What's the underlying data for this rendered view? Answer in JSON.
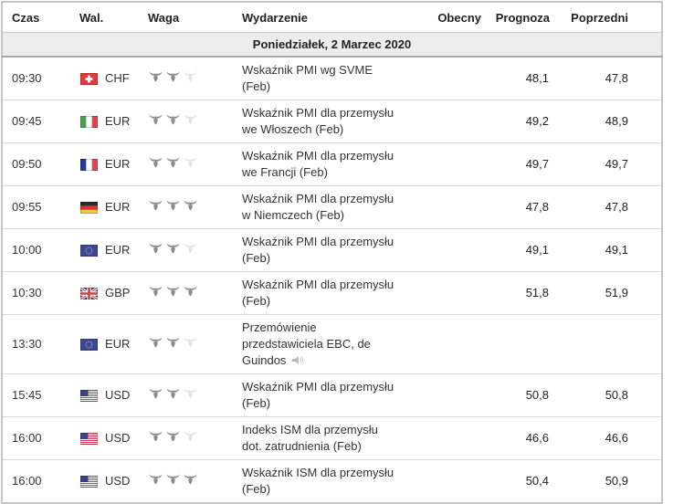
{
  "colors": {
    "up": "#0ba50b",
    "down": "#e51717",
    "neutral": "#222222",
    "importance_active": "#8b8b8b",
    "importance_inactive": "#e4e4e4",
    "date_row_bg": "#ededed"
  },
  "icons": {
    "importance": "bull-icon",
    "speech": "speaker-icon"
  },
  "table": {
    "columns": [
      {
        "key": "time",
        "label": "Czas"
      },
      {
        "key": "currency",
        "label": "Wal."
      },
      {
        "key": "importance",
        "label": "Waga"
      },
      {
        "key": "event",
        "label": "Wydarzenie"
      },
      {
        "key": "actual",
        "label": "Obecny"
      },
      {
        "key": "forecast",
        "label": "Prognoza"
      },
      {
        "key": "previous",
        "label": "Poprzedni"
      }
    ],
    "date_header": "Poniedziałek, 2 Marzec 2020",
    "rows": [
      {
        "time": "09:30",
        "currency": "CHF",
        "flag": "switzerland",
        "importance": 2,
        "importance_max": 3,
        "event": "Wskaźnik PMI wg SVME (Feb)",
        "has_speech_icon": false,
        "actual": "",
        "forecast": "48,1",
        "previous": "47,8",
        "previous_trend": "down"
      },
      {
        "time": "09:45",
        "currency": "EUR",
        "flag": "italy",
        "importance": 2,
        "importance_max": 3,
        "event": "Wskaźnik PMI dla przemysłu we Włoszech (Feb)",
        "has_speech_icon": false,
        "actual": "",
        "forecast": "49,2",
        "previous": "48,9",
        "previous_trend": "neutral"
      },
      {
        "time": "09:50",
        "currency": "EUR",
        "flag": "france",
        "importance": 2,
        "importance_max": 3,
        "event": "Wskaźnik PMI dla przemysłu we Francji (Feb)",
        "has_speech_icon": false,
        "actual": "",
        "forecast": "49,7",
        "previous": "49,7",
        "previous_trend": "down"
      },
      {
        "time": "09:55",
        "currency": "EUR",
        "flag": "germany",
        "importance": 3,
        "importance_max": 3,
        "event": "Wskaźnik PMI dla przemysłu w Niemczech (Feb)",
        "has_speech_icon": false,
        "actual": "",
        "forecast": "47,8",
        "previous": "47,8",
        "previous_trend": "up"
      },
      {
        "time": "10:00",
        "currency": "EUR",
        "flag": "eu",
        "importance": 2,
        "importance_max": 3,
        "event": "Wskaźnik PMI dla przemysłu (Feb)",
        "has_speech_icon": false,
        "actual": "",
        "forecast": "49,1",
        "previous": "49,1",
        "previous_trend": "up"
      },
      {
        "time": "10:30",
        "currency": "GBP",
        "flag": "uk",
        "importance": 3,
        "importance_max": 3,
        "event": "Wskaźnik PMI dla przemysłu (Feb)",
        "has_speech_icon": false,
        "actual": "",
        "forecast": "51,8",
        "previous": "51,9",
        "previous_trend": "up"
      },
      {
        "time": "13:30",
        "currency": "EUR",
        "flag": "eu",
        "importance": 2,
        "importance_max": 3,
        "event": "Przemówienie przedstawiciela EBC, de Guindos",
        "has_speech_icon": true,
        "actual": "",
        "forecast": "",
        "previous": "",
        "previous_trend": "none"
      },
      {
        "time": "15:45",
        "currency": "USD",
        "flag": "us",
        "importance": 2,
        "importance_max": 3,
        "event": "Wskaźnik PMI dla przemysłu (Feb)",
        "has_speech_icon": false,
        "actual": "",
        "forecast": "50,8",
        "previous": "50,8",
        "previous_trend": "down"
      },
      {
        "time": "16:00",
        "currency": "USD",
        "flag": "us",
        "importance": 2,
        "importance_max": 3,
        "event": "Indeks ISM dla przemysłu dot. zatrudnienia (Feb)",
        "has_speech_icon": false,
        "actual": "",
        "forecast": "46,6",
        "previous": "46,6",
        "previous_trend": "neutral"
      },
      {
        "time": "16:00",
        "currency": "USD",
        "flag": "us",
        "importance": 3,
        "importance_max": 3,
        "event": "Wskaźnik ISM dla przemysłu (Feb)",
        "has_speech_icon": false,
        "actual": "",
        "forecast": "50,4",
        "previous": "50,9",
        "previous_trend": "up"
      }
    ]
  }
}
